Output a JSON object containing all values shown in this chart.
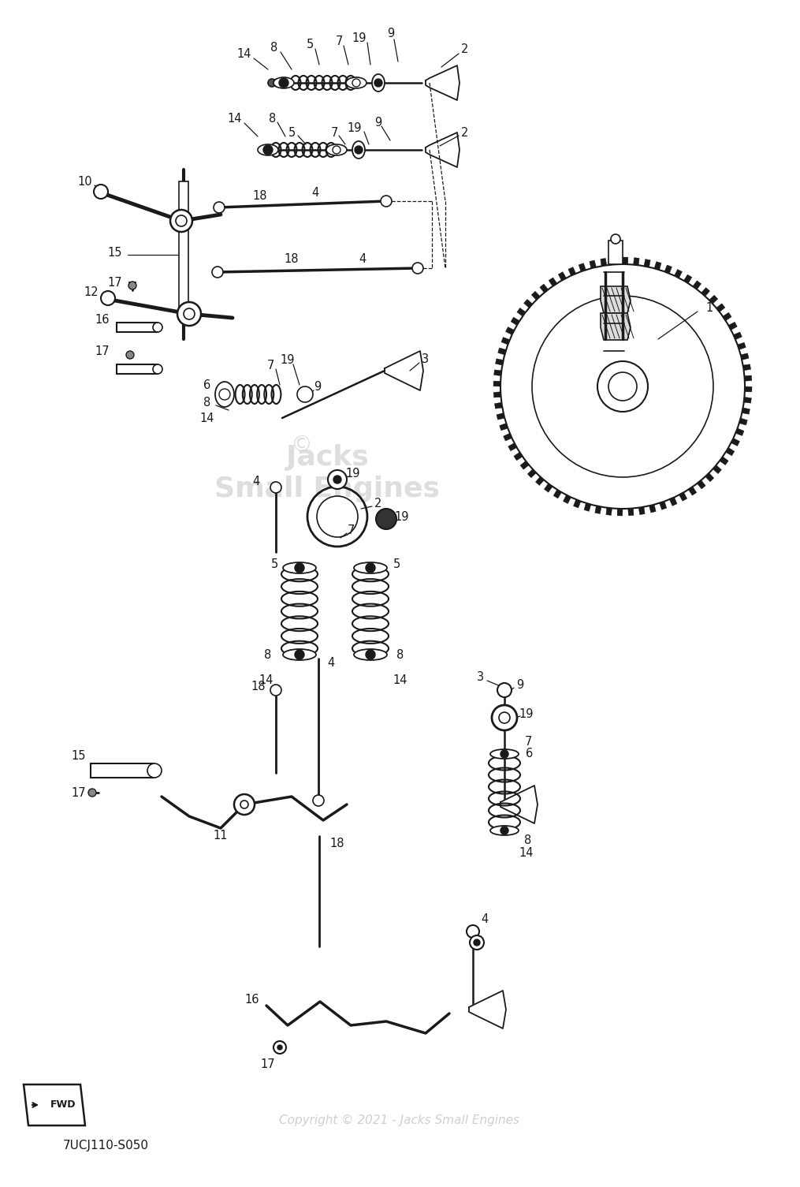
{
  "part_code": "7UCJ110-S050",
  "copyright": "Copyright © 2021 - Jacks Small Engines",
  "bg_color": "#ffffff",
  "line_color": "#1a1a1a",
  "watermark_color": "#c8c8c8",
  "label_fontsize": 10.5,
  "fig_width": 10.15,
  "fig_height": 15.05,
  "dpi": 100
}
